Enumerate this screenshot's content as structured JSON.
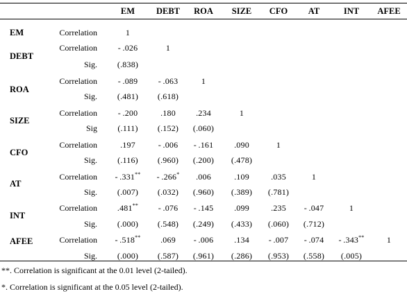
{
  "columns": [
    "EM",
    "DEBT",
    "ROA",
    "SIZE",
    "CFO",
    "AT",
    "INT",
    "AFEE"
  ],
  "rows": [
    {
      "label": "EM",
      "stats": [
        {
          "name": "Correlation",
          "values": [
            "1"
          ]
        }
      ]
    },
    {
      "label": "DEBT",
      "stats": [
        {
          "name": "Correlation",
          "values": [
            "-.026",
            "1"
          ]
        },
        {
          "name": "Sig.",
          "values": [
            "(.838)"
          ]
        }
      ]
    },
    {
      "label": "ROA",
      "stats": [
        {
          "name": "Correlation",
          "values": [
            "-.089",
            "-.063",
            "1"
          ]
        },
        {
          "name": "Sig.",
          "values": [
            "(.481)",
            "(.618)"
          ]
        }
      ]
    },
    {
      "label": "SIZE",
      "stats": [
        {
          "name": "Correlation",
          "values": [
            "-.200",
            ".180",
            ".234",
            "1"
          ]
        },
        {
          "name": "Sig",
          "values": [
            "(.111)",
            "(.152)",
            "(.060)"
          ]
        }
      ]
    },
    {
      "label": "CFO",
      "stats": [
        {
          "name": "Correlation",
          "values": [
            ".197",
            "-.006",
            "-.161",
            ".090",
            "1"
          ]
        },
        {
          "name": "Sig.",
          "values": [
            "(.116)",
            "(.960)",
            "(.200)",
            "(.478)"
          ]
        }
      ]
    },
    {
      "label": "AT",
      "stats": [
        {
          "name": "Correlation",
          "values": [
            "-.331**",
            "-.266*",
            ".006",
            ".109",
            ".035",
            "1"
          ]
        },
        {
          "name": "Sig.",
          "values": [
            "(.007)",
            "(.032)",
            "(.960)",
            "(.389)",
            "(.781)"
          ]
        }
      ]
    },
    {
      "label": "INT",
      "stats": [
        {
          "name": "Correlation",
          "values": [
            ".481**",
            "-.076",
            "-.145",
            ".099",
            ".235",
            "-.047",
            "1"
          ]
        },
        {
          "name": "Sig.",
          "values": [
            "(.000)",
            "(.548)",
            "(.249)",
            "(.433)",
            "(.060)",
            "(.712)"
          ]
        }
      ]
    },
    {
      "label": "AFEE",
      "stats": [
        {
          "name": "Correlation",
          "values": [
            "-.518**",
            ".069",
            "-.006",
            ".134",
            "-.007",
            "-.074",
            "-.343**",
            "1"
          ]
        },
        {
          "name": "Sig.",
          "values": [
            "(.000)",
            "(.587)",
            "(.961)",
            "(.286)",
            "(.953)",
            "(.558)",
            "(.005)"
          ]
        }
      ]
    }
  ],
  "notes": [
    "**. Correlation is significant at the 0.01 level (2-tailed).",
    "*. Correlation is significant at the 0.05 level (2-tailed)."
  ]
}
